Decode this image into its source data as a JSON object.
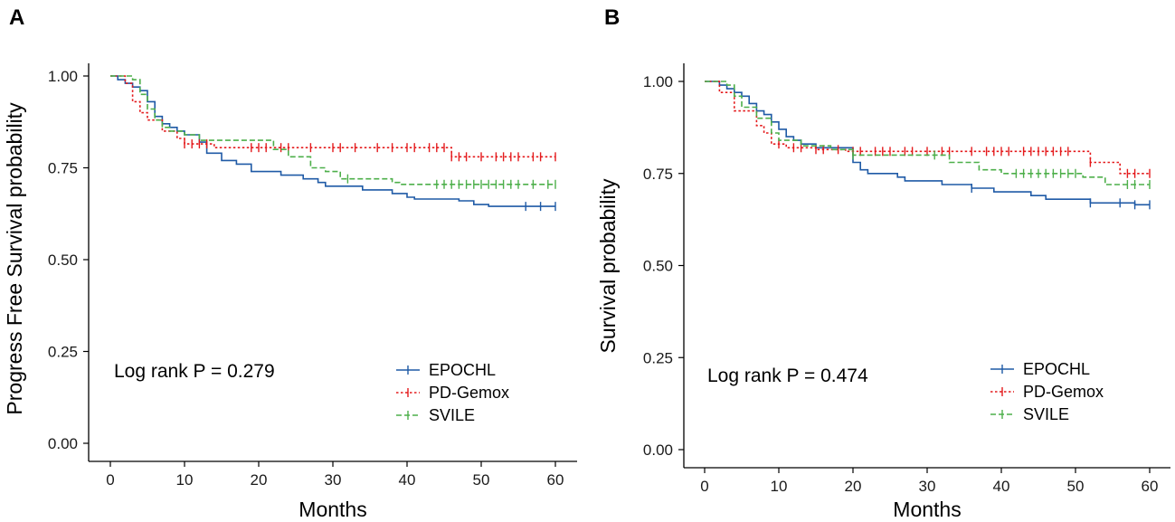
{
  "chart_data": [
    {
      "panel": "A",
      "type": "line",
      "step": true,
      "ylabel": "Progress Free Survival probability",
      "xlabel": "Months",
      "xlim": [
        0,
        60
      ],
      "ylim": [
        0,
        1
      ],
      "xticks": [
        "0",
        "10",
        "20",
        "30",
        "40",
        "50",
        "60"
      ],
      "yticks": [
        "0.00",
        "0.25",
        "0.50",
        "0.75",
        "1.00"
      ],
      "annotation": "Log rank P = 0.279",
      "legend_position": "bottom-right",
      "series": [
        {
          "name": "EPOCHL",
          "color": "#1f5aa6",
          "dash": "solid",
          "steps": [
            [
              0,
              1.0
            ],
            [
              1,
              0.99
            ],
            [
              2,
              0.98
            ],
            [
              3,
              0.97
            ],
            [
              4,
              0.96
            ],
            [
              5,
              0.93
            ],
            [
              6,
              0.89
            ],
            [
              7,
              0.87
            ],
            [
              8,
              0.86
            ],
            [
              9,
              0.85
            ],
            [
              10,
              0.84
            ],
            [
              12,
              0.82
            ],
            [
              13,
              0.79
            ],
            [
              15,
              0.77
            ],
            [
              17,
              0.76
            ],
            [
              19,
              0.74
            ],
            [
              23,
              0.73
            ],
            [
              26,
              0.72
            ],
            [
              28,
              0.71
            ],
            [
              29,
              0.7
            ],
            [
              34,
              0.69
            ],
            [
              38,
              0.68
            ],
            [
              40,
              0.67
            ],
            [
              41,
              0.665
            ],
            [
              47,
              0.66
            ],
            [
              49,
              0.65
            ],
            [
              51,
              0.645
            ],
            [
              60,
              0.645
            ]
          ],
          "censor": [
            56,
            58,
            60
          ]
        },
        {
          "name": "PD-Gemox",
          "color": "#e41a1c",
          "dash": "dotted",
          "steps": [
            [
              0,
              1.0
            ],
            [
              2,
              0.98
            ],
            [
              3,
              0.93
            ],
            [
              4,
              0.9
            ],
            [
              5,
              0.88
            ],
            [
              7,
              0.85
            ],
            [
              9,
              0.83
            ],
            [
              10,
              0.815
            ],
            [
              14,
              0.805
            ],
            [
              46,
              0.78
            ],
            [
              60,
              0.78
            ]
          ],
          "censor": [
            10,
            11,
            12,
            13,
            19,
            20,
            21,
            23,
            24,
            27,
            30,
            31,
            33,
            36,
            38,
            40,
            41,
            43,
            44,
            45,
            46,
            47,
            48,
            50,
            52,
            53,
            54,
            55,
            57,
            58,
            60
          ]
        },
        {
          "name": "SVILE",
          "color": "#4daf4a",
          "dash": "dashed",
          "steps": [
            [
              0,
              1.0
            ],
            [
              3,
              0.99
            ],
            [
              4,
              0.95
            ],
            [
              5,
              0.91
            ],
            [
              6,
              0.88
            ],
            [
              7,
              0.86
            ],
            [
              8,
              0.85
            ],
            [
              10,
              0.84
            ],
            [
              12,
              0.825
            ],
            [
              22,
              0.8
            ],
            [
              24,
              0.78
            ],
            [
              27,
              0.75
            ],
            [
              29,
              0.74
            ],
            [
              31,
              0.72
            ],
            [
              38,
              0.71
            ],
            [
              39,
              0.705
            ],
            [
              60,
              0.705
            ]
          ],
          "censor": [
            32,
            44,
            45,
            46,
            47,
            48,
            49,
            50,
            51,
            52,
            53,
            54,
            55,
            57,
            59,
            60
          ]
        }
      ]
    },
    {
      "panel": "B",
      "type": "line",
      "step": true,
      "ylabel": "Survival probability",
      "xlabel": "Months",
      "xlim": [
        0,
        60
      ],
      "ylim": [
        0,
        1
      ],
      "xticks": [
        "0",
        "10",
        "20",
        "30",
        "40",
        "50",
        "60"
      ],
      "yticks": [
        "0.00",
        "0.25",
        "0.50",
        "0.75",
        "1.00"
      ],
      "annotation": "Log rank P = 0.474",
      "legend_position": "bottom-right",
      "series": [
        {
          "name": "EPOCHL",
          "color": "#1f5aa6",
          "dash": "solid",
          "steps": [
            [
              0,
              1.0
            ],
            [
              2,
              0.99
            ],
            [
              3,
              0.98
            ],
            [
              4,
              0.97
            ],
            [
              5,
              0.96
            ],
            [
              6,
              0.94
            ],
            [
              7,
              0.92
            ],
            [
              8,
              0.91
            ],
            [
              9,
              0.89
            ],
            [
              10,
              0.87
            ],
            [
              11,
              0.85
            ],
            [
              12,
              0.84
            ],
            [
              13,
              0.83
            ],
            [
              15,
              0.82
            ],
            [
              20,
              0.78
            ],
            [
              21,
              0.76
            ],
            [
              22,
              0.75
            ],
            [
              26,
              0.74
            ],
            [
              27,
              0.73
            ],
            [
              32,
              0.72
            ],
            [
              36,
              0.71
            ],
            [
              39,
              0.7
            ],
            [
              44,
              0.69
            ],
            [
              46,
              0.68
            ],
            [
              52,
              0.67
            ],
            [
              58,
              0.665
            ],
            [
              60,
              0.665
            ]
          ],
          "censor": [
            36,
            52,
            56,
            58,
            60
          ]
        },
        {
          "name": "PD-Gemox",
          "color": "#e41a1c",
          "dash": "dotted",
          "steps": [
            [
              0,
              1.0
            ],
            [
              2,
              0.97
            ],
            [
              4,
              0.92
            ],
            [
              7,
              0.88
            ],
            [
              8,
              0.86
            ],
            [
              9,
              0.83
            ],
            [
              11,
              0.82
            ],
            [
              15,
              0.815
            ],
            [
              19,
              0.81
            ],
            [
              52,
              0.78
            ],
            [
              56,
              0.75
            ],
            [
              60,
              0.75
            ]
          ],
          "censor": [
            10,
            12,
            13,
            15,
            16,
            18,
            20,
            21,
            23,
            24,
            25,
            27,
            28,
            30,
            32,
            33,
            36,
            38,
            39,
            40,
            41,
            43,
            44,
            45,
            46,
            47,
            48,
            49,
            52,
            57,
            58,
            60
          ]
        },
        {
          "name": "SVILE",
          "color": "#4daf4a",
          "dash": "dashed",
          "steps": [
            [
              0,
              1.0
            ],
            [
              3,
              0.99
            ],
            [
              4,
              0.96
            ],
            [
              5,
              0.93
            ],
            [
              7,
              0.9
            ],
            [
              9,
              0.86
            ],
            [
              10,
              0.84
            ],
            [
              13,
              0.825
            ],
            [
              17,
              0.815
            ],
            [
              20,
              0.8
            ],
            [
              33,
              0.78
            ],
            [
              37,
              0.76
            ],
            [
              40,
              0.75
            ],
            [
              51,
              0.74
            ],
            [
              54,
              0.72
            ],
            [
              60,
              0.72
            ]
          ],
          "censor": [
            20,
            31,
            42,
            43,
            44,
            45,
            46,
            47,
            48,
            49,
            50,
            57,
            58,
            60
          ]
        }
      ]
    }
  ]
}
